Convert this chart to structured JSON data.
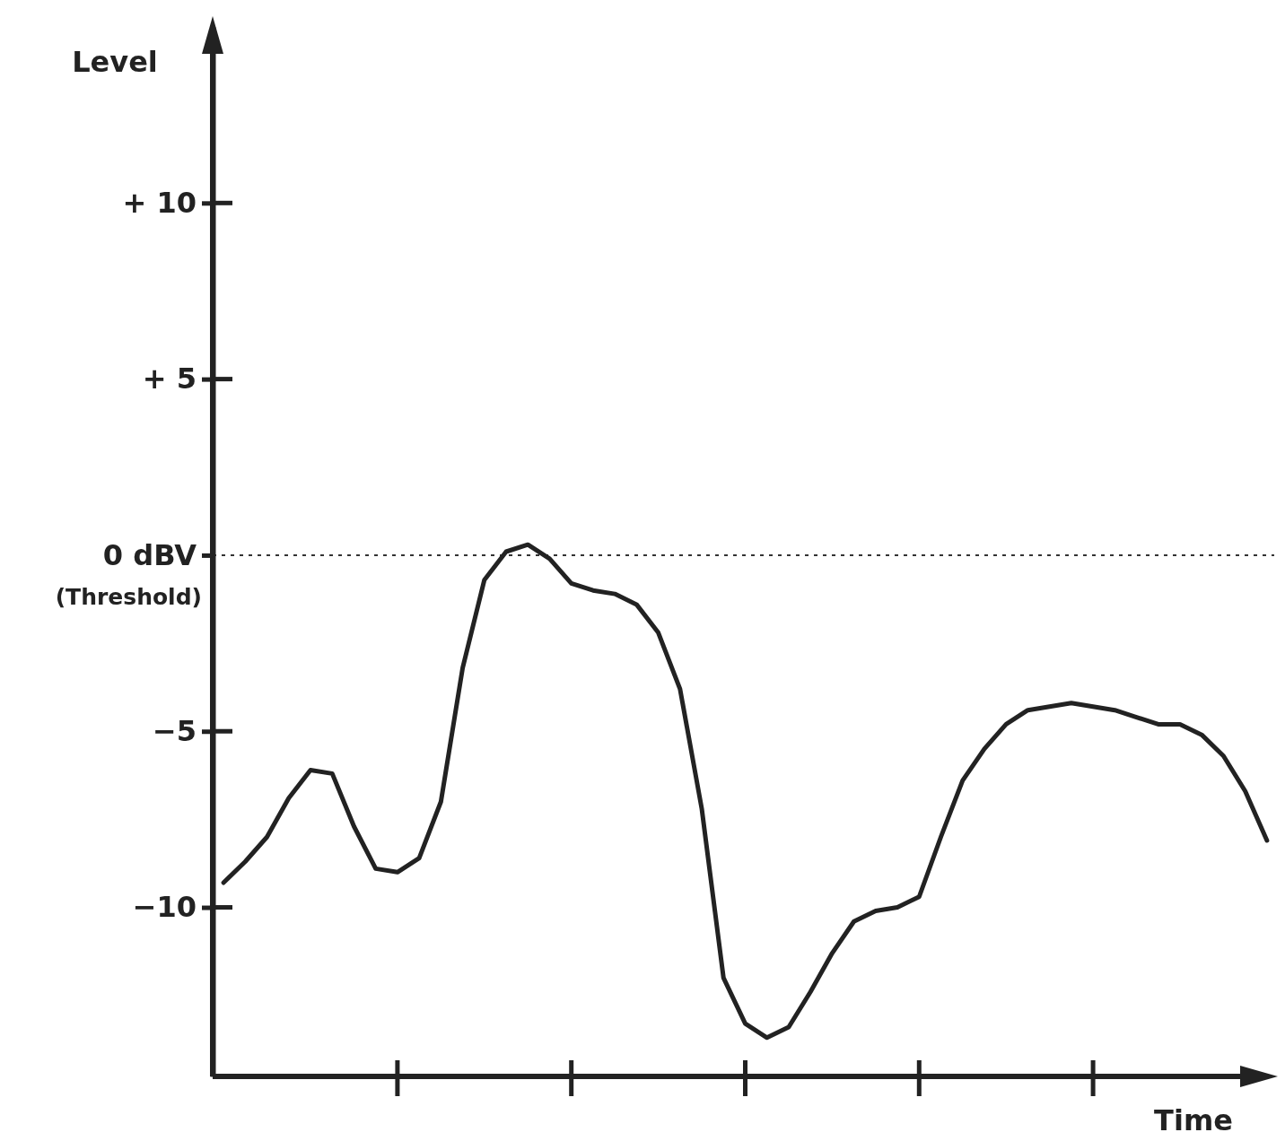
{
  "chart_data": {
    "type": "line",
    "ylabel": "Level",
    "xlabel": "Time",
    "categories": [
      null,
      null,
      null,
      null,
      null,
      null,
      null,
      null,
      null,
      null,
      null,
      null,
      null,
      null,
      null,
      null,
      null,
      null,
      null,
      null,
      null,
      null,
      null,
      null,
      null,
      null,
      null,
      null,
      null,
      null,
      null,
      null,
      null,
      null,
      null,
      null,
      null,
      null,
      null,
      null,
      null,
      null,
      null,
      null,
      null,
      null,
      null,
      null,
      null
    ],
    "ylim": [
      -14.8,
      15
    ],
    "yticks": [
      {
        "value": 10,
        "label": "+ 10"
      },
      {
        "value": 5,
        "label": "+ 5"
      },
      {
        "value": 0,
        "label": "0 dBV"
      },
      {
        "value": -5,
        "label": "−5"
      },
      {
        "value": -10,
        "label": "−10"
      }
    ],
    "tick_labels": "y",
    "marker": "none",
    "line_style": "solid",
    "ref_lines": [
      {
        "axis": "y",
        "value": 0,
        "label": "(Threshold)",
        "color": "#333333",
        "line_style": "dotted"
      }
    ],
    "series": [
      {
        "color": "#222222",
        "values": [
          -9.3,
          -8.7,
          -8.0,
          -6.9,
          -6.1,
          -6.2,
          -7.7,
          -8.9,
          -9.0,
          -8.6,
          -7.0,
          -3.2,
          -0.7,
          0.1,
          0.3,
          -0.1,
          -0.8,
          -1.0,
          -1.1,
          -1.4,
          -2.2,
          -3.8,
          -7.2,
          -12.0,
          -13.3,
          -13.7,
          -13.4,
          -12.4,
          -11.3,
          -10.4,
          -10.1,
          -10.0,
          -9.7,
          -8.0,
          -6.4,
          -5.5,
          -4.8,
          -4.4,
          -4.3,
          -4.2,
          -4.3,
          -4.4,
          -4.6,
          -4.8,
          -4.8,
          -5.1,
          -5.7,
          -6.7,
          -8.1
        ]
      }
    ]
  }
}
